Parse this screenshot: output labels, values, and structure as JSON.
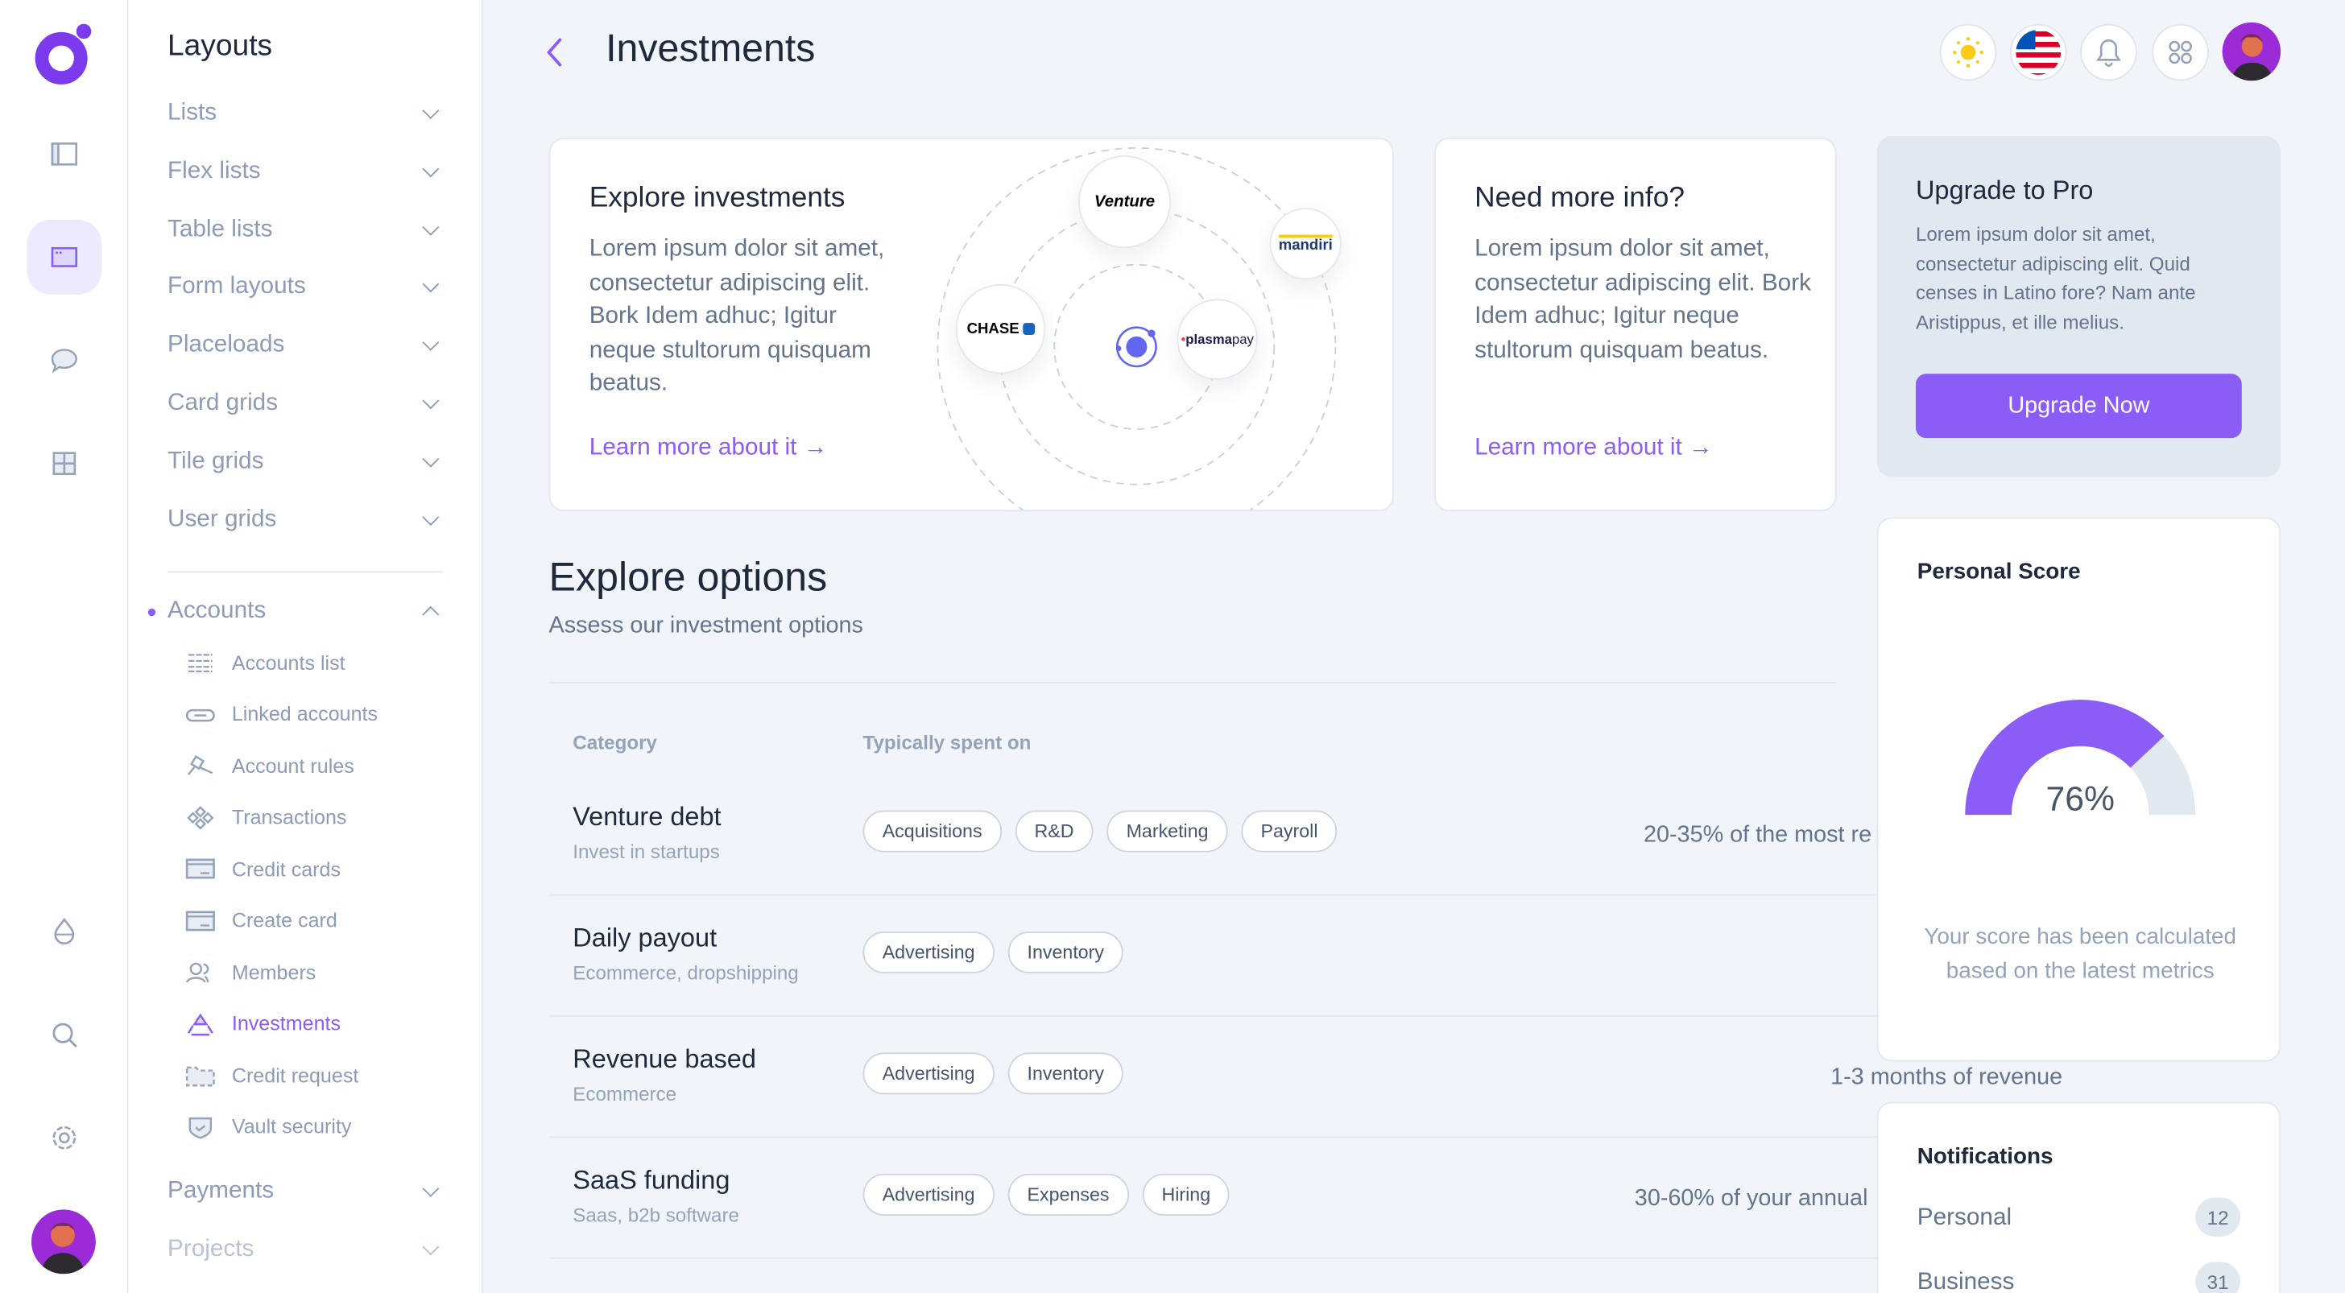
{
  "colors": {
    "accent": "#8b5cf6",
    "background": "#f1f4f9"
  },
  "rail": {
    "icons": [
      "logo",
      "sidebar-layout-icon",
      "window-icon",
      "chat-icon",
      "grid-icon",
      "droplet-icon",
      "search-icon",
      "settings-icon",
      "user-avatar"
    ]
  },
  "sidebar": {
    "title": "Layouts",
    "groups": [
      {
        "label": "Lists"
      },
      {
        "label": "Flex lists"
      },
      {
        "label": "Table lists"
      },
      {
        "label": "Form layouts"
      },
      {
        "label": "Placeloads"
      },
      {
        "label": "Card grids"
      },
      {
        "label": "Tile grids"
      },
      {
        "label": "User grids"
      }
    ],
    "accounts": {
      "label": "Accounts",
      "items": [
        {
          "label": "Accounts list",
          "icon": "list-icon"
        },
        {
          "label": "Linked accounts",
          "icon": "link-icon"
        },
        {
          "label": "Account rules",
          "icon": "gavel-icon"
        },
        {
          "label": "Transactions",
          "icon": "diamonds-icon"
        },
        {
          "label": "Credit cards",
          "icon": "credit-card-icon"
        },
        {
          "label": "Create card",
          "icon": "card-plus-icon"
        },
        {
          "label": "Members",
          "icon": "users-icon"
        },
        {
          "label": "Investments",
          "icon": "recycle-icon",
          "active": true
        },
        {
          "label": "Credit request",
          "icon": "folder-dashed-icon"
        },
        {
          "label": "Vault security",
          "icon": "shield-check-icon"
        }
      ]
    },
    "after": [
      {
        "label": "Payments"
      },
      {
        "label": "Projects"
      }
    ]
  },
  "header": {
    "title": "Investments"
  },
  "explore_card": {
    "title": "Explore investments",
    "text": "Lorem ipsum dolor sit amet, consectetur adipiscing elit. Bork Idem adhuc; Igitur neque stultorum quisquam beatus.",
    "link": "Learn more about it",
    "logos": {
      "venture": "Venture",
      "mandiri": "mandiri",
      "chase": "CHASE",
      "plasma": "plasma",
      "pay": "pay"
    }
  },
  "info_card": {
    "title": "Need more info?",
    "text": "Lorem ipsum dolor sit amet, consectetur adipiscing elit. Bork Idem adhuc; Igitur neque stultorum quisquam beatus.",
    "link": "Learn more about it"
  },
  "upgrade": {
    "title": "Upgrade to Pro",
    "text": "Lorem ipsum dolor sit amet, consectetur adipiscing elit. Quid censes in Latino fore? Nam ante Aristippus, et ille melius.",
    "button": "Upgrade Now"
  },
  "options": {
    "title": "Explore options",
    "subtitle": "Assess our investment options",
    "columns": [
      "Category",
      "Typically spent on"
    ],
    "rows": [
      {
        "title": "Venture debt",
        "subtitle": "Invest in startups",
        "tags": [
          "Acquisitions",
          "R&D",
          "Marketing",
          "Payroll"
        ],
        "amount": "20-35% of the most re"
      },
      {
        "title": "Daily payout",
        "subtitle": "Ecommerce, dropshipping",
        "tags": [
          "Advertising",
          "Inventory"
        ],
        "amount": ""
      },
      {
        "title": "Revenue based",
        "subtitle": "Ecommerce",
        "tags": [
          "Advertising",
          "Inventory"
        ],
        "amount": "1-3 months of revenue"
      },
      {
        "title": "SaaS funding",
        "subtitle": "Saas, b2b software",
        "tags": [
          "Advertising",
          "Expenses",
          "Hiring"
        ],
        "amount": "30-60% of your annual"
      }
    ]
  },
  "score": {
    "title": "Personal Score",
    "value": 76,
    "label": "76%",
    "text": "Your score has been calculated based on the latest metrics"
  },
  "notifications": {
    "title": "Notifications",
    "items": [
      {
        "label": "Personal",
        "count": "12"
      },
      {
        "label": "Business",
        "count": "31"
      }
    ]
  }
}
